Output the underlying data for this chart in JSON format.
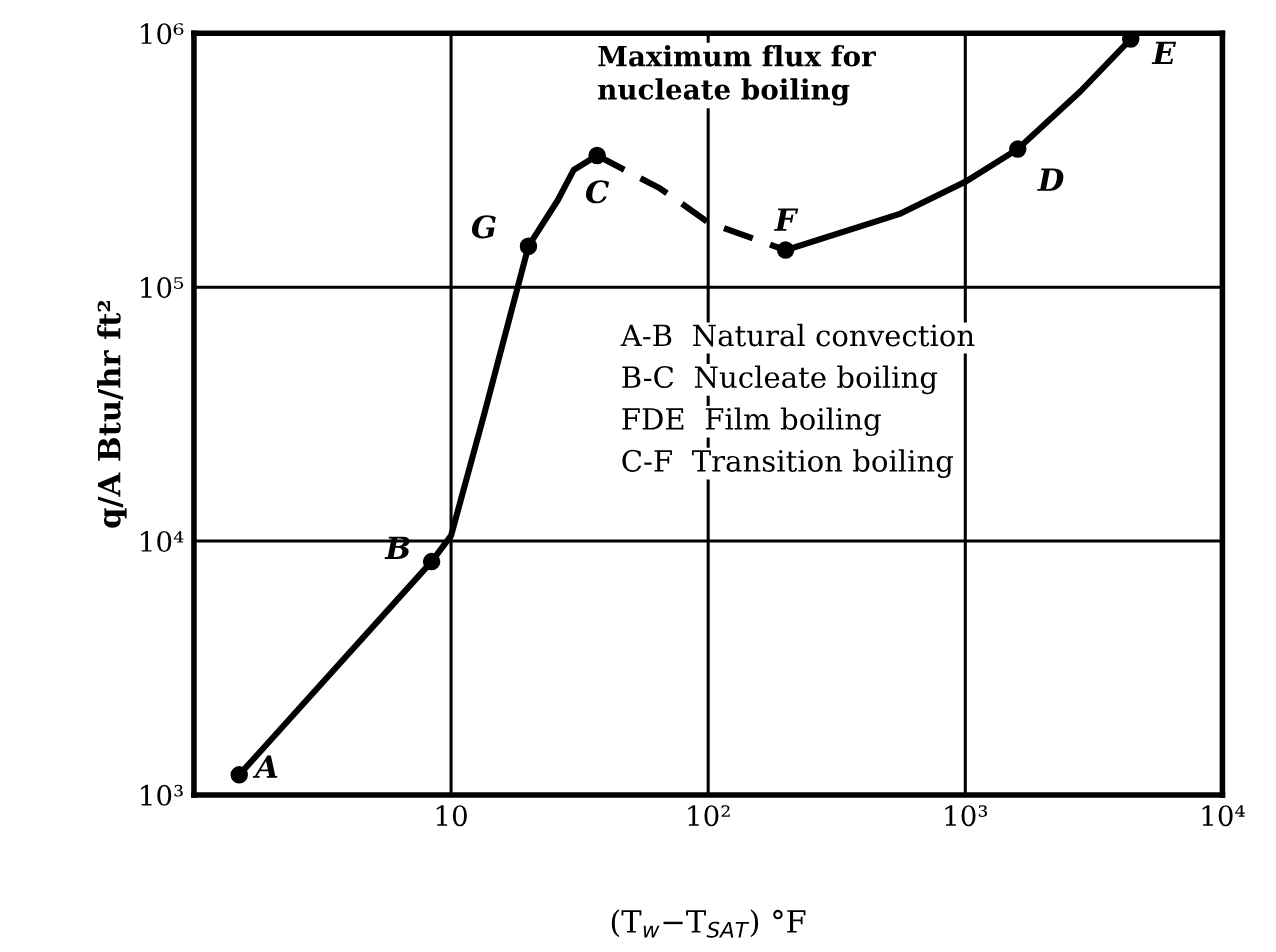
{
  "chart_data": {
    "type": "line",
    "xlabel": "(T$_{w}$−T$_{SAT}$) °F",
    "ylabel": "q/A Btu/hr ft²",
    "log": "xy",
    "grid": true,
    "xlim": [
      1,
      10000
    ],
    "xticks": [
      {
        "value": 1,
        "label": null
      },
      {
        "value": 10,
        "label": "10"
      },
      {
        "value": 100,
        "label": "10²"
      },
      {
        "value": 1000,
        "label": "10³"
      },
      {
        "value": 10000,
        "label": "10⁴"
      }
    ],
    "ylim": [
      1000,
      1000000
    ],
    "yticks": [
      {
        "value": 1000,
        "label": "10³"
      },
      {
        "value": 10000,
        "label": "10⁴"
      },
      {
        "value": 100000,
        "label": "10⁵"
      },
      {
        "value": 1000000,
        "label": "10⁶"
      }
    ],
    "series": [
      {
        "line_style": "solid",
        "color": "#000000",
        "x": [
          1.5,
          8.4,
          10,
          13.5,
          20,
          26,
          30,
          37
        ],
        "values": [
          1200,
          8300,
          10500,
          32000,
          145000,
          220000,
          290000,
          330000
        ]
      },
      {
        "line_style": "dashed",
        "color": "#000000",
        "x": [
          37,
          65,
          100,
          200
        ],
        "values": [
          330000,
          245000,
          180000,
          140000
        ]
      },
      {
        "line_style": "solid",
        "color": "#000000",
        "x": [
          200,
          560,
          1000,
          1600,
          2800,
          4400
        ],
        "values": [
          140000,
          195000,
          260000,
          350000,
          590000,
          950000
        ]
      },
      {
        "type": "scatter",
        "marker": "circle",
        "color": "#000000",
        "x": [
          1.5,
          8.4,
          20,
          37,
          200,
          1600,
          4400
        ],
        "values": [
          1200,
          8300,
          145000,
          330000,
          140000,
          350000,
          950000
        ]
      }
    ],
    "annotations": [
      {
        "text": "A",
        "x": 1.5,
        "y": 1200
      },
      {
        "text": "B",
        "x": 8.4,
        "y": 8300
      },
      {
        "text": "G",
        "x": 20,
        "y": 145000
      },
      {
        "text": "C",
        "x": 37,
        "y": 330000
      },
      {
        "text": "F",
        "x": 200,
        "y": 140000
      },
      {
        "text": "D",
        "x": 1600,
        "y": 350000
      },
      {
        "text": "E",
        "x": 4400,
        "y": 950000
      },
      {
        "text": "Maximum flux for\nnucleate boiling",
        "x": 37,
        "y": 330000
      },
      "A-B  Natural convection",
      "B-C  Nucleate boiling",
      "FDE  Film boiling",
      "C-F  Transition boiling"
    ]
  }
}
